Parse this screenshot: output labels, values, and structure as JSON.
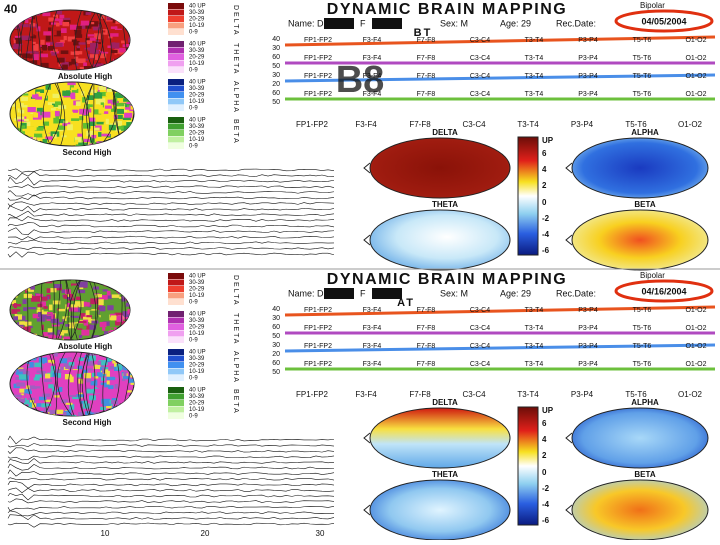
{
  "page_label": "40",
  "overlay": "B8",
  "panels": [
    {
      "title": "DYNAMIC BRAIN MAPPING",
      "name_label": "Name: D",
      "initial": "F",
      "sex": "Sex: M",
      "age": "Age: 29",
      "date_label": "Rec.Date:",
      "date": "04/05/2004",
      "tag": "BT",
      "montage": "Bipolar"
    },
    {
      "title": "DYNAMIC BRAIN MAPPING",
      "name_label": "Name: D",
      "initial": "F",
      "sex": "Sex: M",
      "age": "Age: 29",
      "date_label": "Rec.Date:",
      "date": "04/16/2004",
      "tag": "AT",
      "montage": "Bipolar"
    }
  ],
  "brain_labels": [
    "Absolute High",
    "Second High"
  ],
  "band_letters": [
    "DELTA",
    "THETA",
    "ALPHA",
    "BETA"
  ],
  "legend_ranges": [
    "40 UP",
    "30-39",
    "20-29",
    "10-19",
    "0-9"
  ],
  "topo_labels": [
    "DELTA",
    "ALPHA",
    "THETA",
    "BETA"
  ],
  "scale": [
    "UP",
    "6",
    "4",
    "2",
    "0",
    "-2",
    "-4",
    "-6"
  ],
  "channels": [
    "FP1-FP2",
    "F3-F4",
    "F7-F8",
    "C3-C4",
    "T3-T4",
    "P3-P4",
    "T5-T6",
    "O1-O2"
  ],
  "trend_ticks": [
    "40",
    "30",
    "60",
    "50",
    "30",
    "20",
    "60",
    "50"
  ],
  "x_axis": [
    "10",
    "20",
    "30"
  ]
}
